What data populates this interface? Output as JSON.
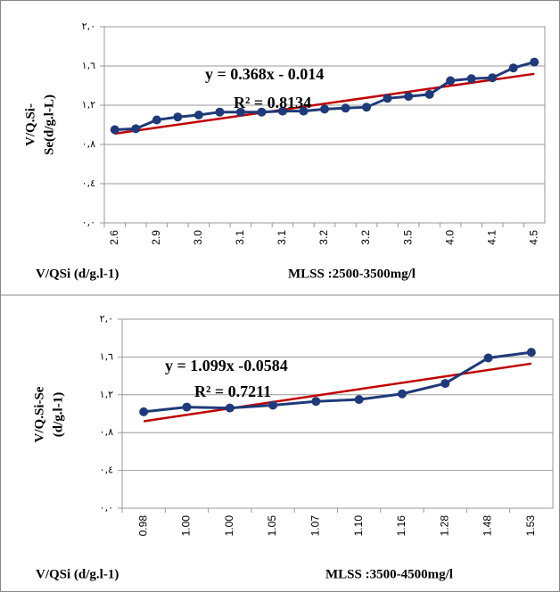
{
  "chart_data": [
    {
      "type": "line",
      "y_label": [
        "V/Q.Si-",
        "Se(d/g.l-L)"
      ],
      "x_label": "V/QSi (d/g.l-1)",
      "annotation": "MLSS :2500-3500mg/l",
      "equation": "y = 0.368x - 0.014",
      "r_squared": "R² = 0.8134",
      "categories": [
        "2.6",
        null,
        "2.9",
        null,
        "3.0",
        null,
        "3.1",
        null,
        "3.1",
        null,
        "3.2",
        null,
        "3.2",
        null,
        "3.5",
        null,
        "4.0",
        null,
        "4.1",
        null,
        "4.5"
      ],
      "series": [
        {
          "color": "#1f3a7a",
          "values": [
            0.95,
            0.96,
            1.05,
            1.08,
            1.1,
            1.13,
            1.13,
            1.13,
            1.14,
            1.14,
            1.16,
            1.17,
            1.18,
            1.27,
            1.29,
            1.31,
            1.45,
            1.47,
            1.48,
            1.58,
            1.64
          ]
        }
      ],
      "trendline": {
        "color": "#c00000",
        "values": [
          0.91,
          1.52
        ]
      },
      "ylim": [
        0,
        2.0
      ],
      "yticks": [
        {
          "value": 0,
          "label": "٠,٠"
        },
        {
          "value": 0.4,
          "label": "٠,٤"
        },
        {
          "value": 0.8,
          "label": "٠,٨"
        },
        {
          "value": 1.2,
          "label": "١,٢"
        },
        {
          "value": 1.6,
          "label": "١,٦"
        },
        {
          "value": 2.0,
          "label": "٢,٠"
        }
      ],
      "grid": true
    },
    {
      "type": "line",
      "y_label": [
        "V/Q.Si-Se",
        "(d/g.l-1)"
      ],
      "x_label": "V/QSi (d/g.l-1)",
      "annotation": "MLSS :3500-4500mg/l",
      "equation": "y = 1.099x -0.0584",
      "r_squared": "R² = 0.7211",
      "categories": [
        "0.98",
        "1.00",
        "1.00",
        "1.05",
        "1.07",
        "1.10",
        "1.16",
        "1.28",
        "1.48",
        "1.53"
      ],
      "series": [
        {
          "color": "#1f3a7a",
          "values": [
            1.02,
            1.07,
            1.06,
            1.09,
            1.13,
            1.15,
            1.21,
            1.32,
            1.59,
            1.65
          ]
        }
      ],
      "trendline": {
        "color": "#c00000",
        "values": [
          0.92,
          1.53
        ]
      },
      "ylim": [
        0,
        2.0
      ],
      "yticks": [
        {
          "value": 0,
          "label": "٠,٠"
        },
        {
          "value": 0.4,
          "label": "٠,٤"
        },
        {
          "value": 0.8,
          "label": "٠,٨"
        },
        {
          "value": 1.2,
          "label": "١,٢"
        },
        {
          "value": 1.6,
          "label": "١,٦"
        },
        {
          "value": 2.0,
          "label": "٢,٠"
        }
      ],
      "grid": true
    }
  ]
}
